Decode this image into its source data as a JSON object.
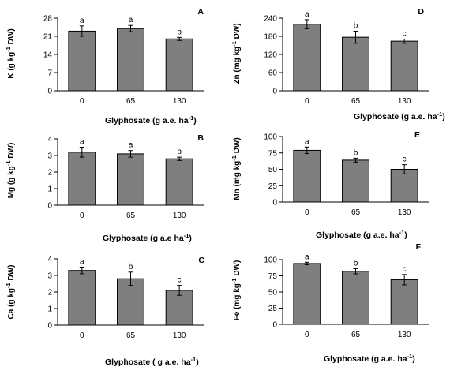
{
  "chart_data": [
    {
      "type": "bar",
      "panel": "A",
      "categories": [
        "0",
        "65",
        "130"
      ],
      "values": [
        23,
        24,
        20
      ],
      "errors": [
        2.0,
        1.2,
        0.6
      ],
      "letters": [
        "a",
        "a",
        "b"
      ],
      "ylim": [
        0,
        28
      ],
      "yticks": [
        0,
        7,
        14,
        21,
        28
      ],
      "ylabel_parts": [
        "K (g kg",
        "-1",
        " DW)"
      ],
      "xlabel_parts": [
        "Glyphosate (g a.e. ha",
        "-1",
        ")"
      ]
    },
    {
      "type": "bar",
      "panel": "D",
      "categories": [
        "0",
        "65",
        "130"
      ],
      "values": [
        220,
        177,
        164
      ],
      "errors": [
        15,
        20,
        7
      ],
      "letters": [
        "a",
        "b",
        "c"
      ],
      "ylim": [
        0,
        240
      ],
      "yticks": [
        0,
        60,
        120,
        180,
        240
      ],
      "ylabel_parts": [
        "Zn (mg kg",
        "-1",
        " DW)"
      ],
      "xlabel_parts": [
        "Glyphosate (g a.e. ha",
        "-1",
        ")"
      ]
    },
    {
      "type": "bar",
      "panel": "B",
      "categories": [
        "0",
        "65",
        "130"
      ],
      "values": [
        3.2,
        3.1,
        2.8
      ],
      "errors": [
        0.3,
        0.2,
        0.1
      ],
      "letters": [
        "a",
        "a",
        "b"
      ],
      "ylim": [
        0,
        4
      ],
      "yticks": [
        0,
        1,
        2,
        3,
        4
      ],
      "ylabel_parts": [
        "Mg (g  kg",
        "-1",
        " DW)"
      ],
      "xlabel_parts": [
        "Glyphosate (g a.e ha",
        "-1",
        ")"
      ]
    },
    {
      "type": "bar",
      "panel": "E",
      "categories": [
        "0",
        "65",
        "130"
      ],
      "values": [
        79,
        64,
        50
      ],
      "errors": [
        5,
        3,
        7
      ],
      "letters": [
        "a",
        "b",
        "c"
      ],
      "ylim": [
        0,
        100
      ],
      "yticks": [
        0,
        25,
        50,
        75,
        100
      ],
      "ylabel_parts": [
        "Mn (mg kg",
        "-1",
        " DW)"
      ],
      "xlabel_parts": [
        "Glyphosate (g a.e. ha",
        "-1",
        ")"
      ]
    },
    {
      "type": "bar",
      "panel": "C",
      "categories": [
        "0",
        "65",
        "130"
      ],
      "values": [
        3.3,
        2.8,
        2.1
      ],
      "errors": [
        0.2,
        0.4,
        0.3
      ],
      "letters": [
        "a",
        "b",
        "c"
      ],
      "ylim": [
        0,
        4
      ],
      "yticks": [
        0,
        1,
        2,
        3,
        4
      ],
      "ylabel_parts": [
        "Ca (g kg",
        "-1",
        " DW)"
      ],
      "xlabel_parts": [
        "Glyphosate ( g a.e. ha",
        "-1",
        ")"
      ]
    },
    {
      "type": "bar",
      "panel": "F",
      "categories": [
        "0",
        "65",
        "130"
      ],
      "values": [
        94,
        82,
        69
      ],
      "errors": [
        2,
        4,
        8
      ],
      "letters": [
        "a",
        "b",
        "c"
      ],
      "ylim": [
        0,
        100
      ],
      "yticks": [
        0,
        25,
        50,
        75,
        100
      ],
      "ylabel_parts": [
        "Fe (mg kg",
        "-1",
        " DW)"
      ],
      "xlabel_parts": [
        "Glyphosate (g a.e. ha",
        "-1",
        ")"
      ]
    }
  ],
  "colors": {
    "bar": "#7f7f7f",
    "bar_border": "#000000",
    "axis": "#000000",
    "background": "#ffffff"
  }
}
